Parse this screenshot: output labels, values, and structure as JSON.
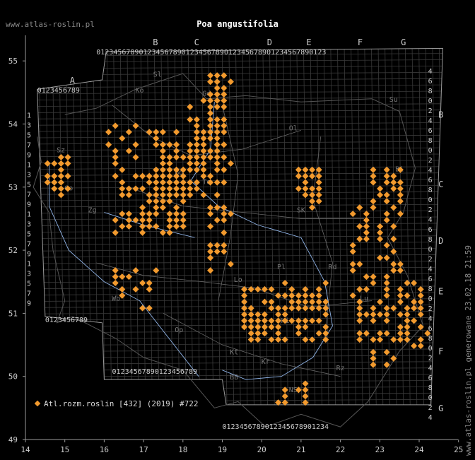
{
  "title": "Poa angustifolia",
  "site": "www.atlas-roslin.pl",
  "generated": "www.atlas-roslin.pl generowane 23.02.18 21:59",
  "legend": {
    "label": "Atl.rozm.roslin [432] (2019) #722",
    "color": "#f29a2e"
  },
  "x_axis": {
    "ticks": [
      "14",
      "15",
      "16",
      "17",
      "18",
      "19",
      "20",
      "21",
      "22",
      "23",
      "24",
      "25"
    ]
  },
  "y_axis": {
    "ticks": [
      "49",
      "50",
      "51",
      "52",
      "53",
      "54",
      "55"
    ]
  },
  "grid_letters_top": [
    "A",
    "B",
    "C",
    "D",
    "E",
    "F",
    "G"
  ],
  "grid_letters_right": [
    "B",
    "C",
    "D",
    "E",
    "F",
    "G"
  ],
  "region_codes": [
    "Sl",
    "Ko",
    "Gd",
    "Ol",
    "Su",
    "Bi",
    "Sz",
    "Zg",
    "Go",
    "Bd",
    "To",
    "SK",
    "Pl",
    "Rd",
    "Lo",
    "Wb",
    "Op",
    "Ki",
    "Kt",
    "BB",
    "NS",
    "Rz",
    "Kr",
    "Lu"
  ],
  "digits_row": "0123456789",
  "right_side_digits": [
    "4",
    "6",
    "8",
    "0",
    "2"
  ],
  "colors": {
    "background": "#000000",
    "grid": "#3a3a3a",
    "border": "#9a9a9a",
    "marker": "#f29a2e",
    "river": "#8fb3e6",
    "text": "#cccccc"
  },
  "markers_note": "orange diamonds mark atlas squares with records"
}
